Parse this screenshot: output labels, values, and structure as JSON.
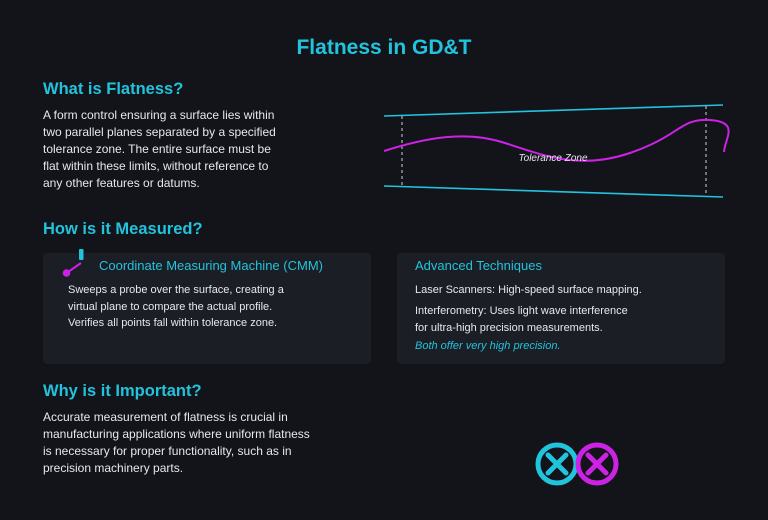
{
  "title": "Flatness in GD&T",
  "what": {
    "heading": "What is Flatness?",
    "lines": [
      "A form control ensuring a surface lies within",
      "two parallel planes separated by a specified",
      "tolerance zone. The entire surface must be",
      "flat within these limits, without reference to",
      "any other features or datums."
    ]
  },
  "diagram": {
    "label": "Tolerance Zone",
    "colors": {
      "planes": "#22c3dc",
      "profile": "#cc22e6",
      "markers": "#cfd3da"
    }
  },
  "how": {
    "heading": "How is it Measured?",
    "cmm": {
      "title": "Coordinate Measuring Machine (CMM)",
      "icon": "cmm-probe-icon",
      "lines": [
        "Sweeps a probe over the surface, creating a",
        "virtual plane to compare the actual profile.",
        "Verifies all points fall within tolerance zone."
      ]
    },
    "advanced": {
      "title": "Advanced Techniques",
      "item1": "Laser Scanners: High-speed surface mapping.",
      "item2_lines": [
        "Interferometry: Uses light wave interference",
        "for ultra-high precision measurements."
      ],
      "note": "Both offer very high precision."
    }
  },
  "why": {
    "heading": "Why is it Important?",
    "lines": [
      "Accurate measurement of flatness is crucial in",
      "manufacturing applications where uniform flatness",
      "is necessary for proper functionality, such as in",
      "precision machinery parts."
    ]
  },
  "icons": {
    "left": {
      "name": "circle-x-icon",
      "color": "#22c3dc"
    },
    "right": {
      "name": "circle-x-icon",
      "color": "#cc22e6"
    }
  }
}
